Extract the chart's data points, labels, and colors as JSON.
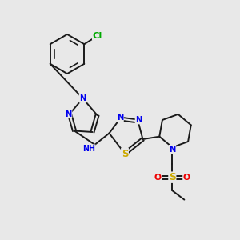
{
  "bg_color": "#e8e8e8",
  "bond_color": "#1a1a1a",
  "N_color": "#0000ee",
  "S_color": "#ccaa00",
  "O_color": "#ee0000",
  "Cl_color": "#00aa00",
  "font_size": 7.2,
  "bond_width": 1.4,
  "figsize": [
    3.0,
    3.0
  ],
  "dpi": 100,
  "xlim": [
    0,
    10
  ],
  "ylim": [
    0,
    10
  ]
}
